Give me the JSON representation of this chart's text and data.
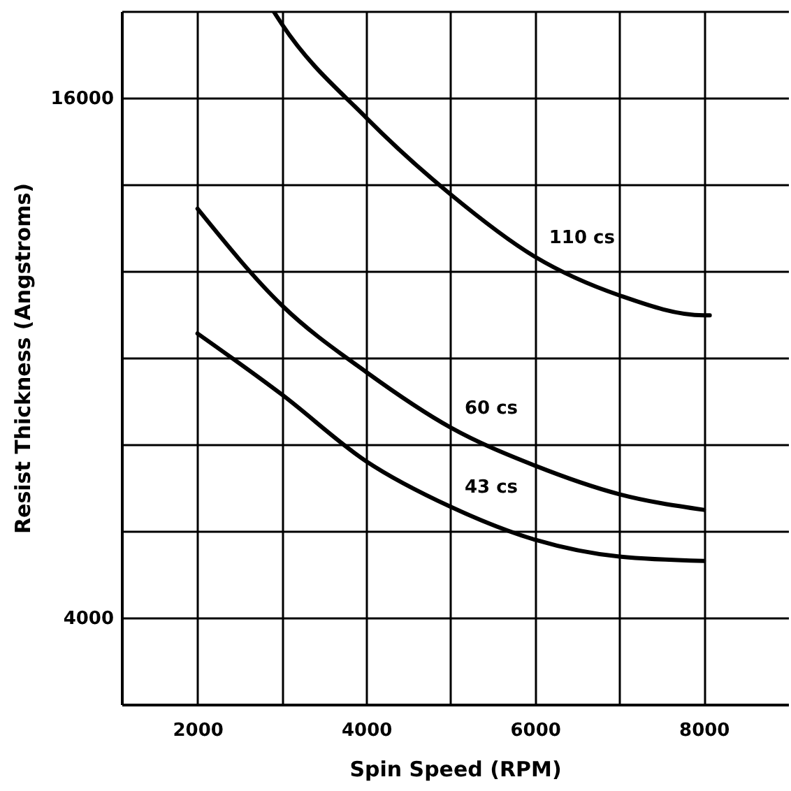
{
  "chart_data": {
    "type": "line",
    "xlabel": "Spin Speed (RPM)",
    "ylabel": "Resist Thickness (Angstroms)",
    "xlim": [
      1100,
      9000
    ],
    "ylim": [
      2000,
      18000
    ],
    "xticks": [
      2000,
      {
        "value": 3000,
        "label": null
      },
      4000,
      {
        "value": 5000,
        "label": null
      },
      6000,
      {
        "value": 7000,
        "label": null
      },
      8000
    ],
    "yticks": [
      {
        "value": 2000,
        "label": null
      },
      4000,
      {
        "value": 6000,
        "label": null
      },
      {
        "value": 8000,
        "label": null
      },
      {
        "value": 10000,
        "label": null
      },
      {
        "value": 12000,
        "label": null
      },
      {
        "value": 14000,
        "label": null
      },
      16000,
      {
        "value": 18000,
        "label": null
      }
    ],
    "grid": true,
    "line_style": "solid",
    "series": [
      {
        "name": "110 cs",
        "color": "#000000",
        "x": [
          2900,
          3000,
          4000,
          5000,
          6000,
          7000,
          8000,
          8070
        ],
        "values": [
          18000,
          17700,
          15540,
          13770,
          12330,
          11440,
          10980,
          10980
        ]
      },
      {
        "name": "60 cs",
        "color": "#000000",
        "x": [
          2000,
          3000,
          4000,
          5000,
          6000,
          7000,
          8000
        ],
        "values": [
          13440,
          11210,
          9670,
          8390,
          7510,
          6850,
          6490
        ]
      },
      {
        "name": "43 cs",
        "color": "#000000",
        "x": [
          2000,
          3000,
          4000,
          5000,
          6000,
          7000,
          8000
        ],
        "values": [
          10560,
          9150,
          7610,
          6560,
          5800,
          5410,
          5310
        ]
      }
    ]
  }
}
